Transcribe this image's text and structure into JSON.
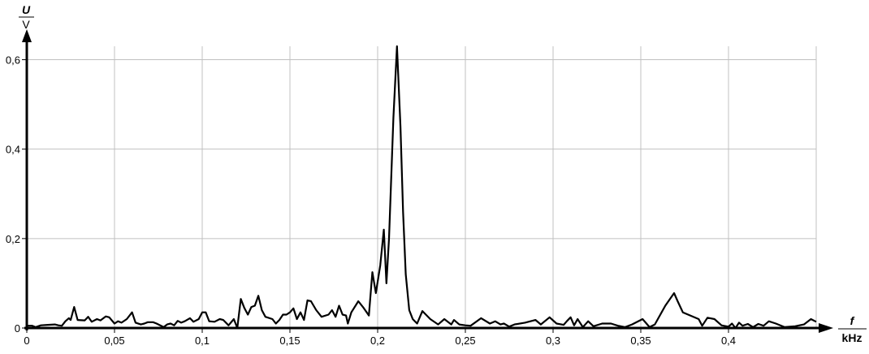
{
  "chart_data": {
    "type": "line",
    "xlabel": {
      "symbol": "f",
      "unit": "kHz"
    },
    "ylabel": {
      "symbol": "U",
      "unit": "V"
    },
    "xlim": [
      0,
      0.45
    ],
    "ylim": [
      0,
      0.63
    ],
    "grid": true,
    "x_ticks": [
      0,
      0.05,
      0.1,
      0.15,
      0.2,
      0.25,
      0.3,
      0.35,
      0.4
    ],
    "x_tick_labels": [
      "0",
      "0,05",
      "0,1",
      "0,15",
      "0,2",
      "0,25",
      "0,3",
      "0,35",
      "0,4"
    ],
    "y_ticks": [
      0,
      0.2,
      0.4,
      0.6
    ],
    "y_tick_labels": [
      "0",
      "0,2",
      "0,4",
      "0,6"
    ],
    "line_color": "#000000",
    "grid_color": "#c0c0c0",
    "series": [
      {
        "x": [
          0,
          0.003,
          0.005,
          0.008,
          0.012,
          0.016,
          0.018,
          0.02,
          0.022,
          0.024,
          0.025,
          0.027,
          0.029,
          0.033,
          0.035,
          0.037,
          0.04,
          0.042,
          0.045,
          0.047,
          0.05,
          0.052,
          0.054,
          0.057,
          0.06,
          0.062,
          0.065,
          0.067,
          0.069,
          0.072,
          0.074,
          0.078,
          0.08,
          0.082,
          0.084,
          0.086,
          0.088,
          0.09,
          0.093,
          0.095,
          0.098,
          0.1,
          0.102,
          0.104,
          0.107,
          0.11,
          0.112,
          0.115,
          0.118,
          0.12,
          0.122,
          0.124,
          0.126,
          0.128,
          0.13,
          0.132,
          0.134,
          0.136,
          0.14,
          0.142,
          0.144,
          0.146,
          0.148,
          0.15,
          0.152,
          0.154,
          0.156,
          0.158,
          0.16,
          0.162,
          0.165,
          0.168,
          0.172,
          0.174,
          0.176,
          0.178,
          0.18,
          0.182,
          0.183,
          0.185,
          0.189,
          0.192,
          0.195,
          0.197,
          0.199,
          0.2015,
          0.2035,
          0.205,
          0.2065,
          0.209,
          0.211,
          0.213,
          0.2145,
          0.216,
          0.218,
          0.22,
          0.2225,
          0.2255,
          0.23,
          0.2345,
          0.238,
          0.242,
          0.2435,
          0.2465,
          0.25,
          0.253,
          0.259,
          0.264,
          0.267,
          0.27,
          0.272,
          0.275,
          0.278,
          0.284,
          0.29,
          0.293,
          0.298,
          0.302,
          0.306,
          0.308,
          0.31,
          0.312,
          0.314,
          0.317,
          0.32,
          0.323,
          0.328,
          0.333,
          0.337,
          0.341,
          0.345,
          0.351,
          0.355,
          0.358,
          0.364,
          0.369,
          0.371,
          0.374,
          0.377,
          0.383,
          0.385,
          0.388,
          0.392,
          0.396,
          0.4,
          0.402,
          0.404,
          0.406,
          0.408,
          0.411,
          0.414,
          0.417,
          0.42,
          0.423,
          0.427,
          0.432,
          0.438,
          0.443,
          0.447,
          0.45
        ],
        "y": [
          0.005,
          0.005,
          0.002,
          0.006,
          0.007,
          0.008,
          0.006,
          0.005,
          0.015,
          0.022,
          0.018,
          0.047,
          0.018,
          0.017,
          0.025,
          0.014,
          0.02,
          0.017,
          0.026,
          0.024,
          0.01,
          0.015,
          0.012,
          0.02,
          0.035,
          0.012,
          0.008,
          0.01,
          0.013,
          0.013,
          0.01,
          0.002,
          0.008,
          0.01,
          0.006,
          0.016,
          0.012,
          0.015,
          0.022,
          0.014,
          0.02,
          0.035,
          0.035,
          0.015,
          0.014,
          0.02,
          0.018,
          0.006,
          0.02,
          0.0,
          0.065,
          0.045,
          0.03,
          0.047,
          0.05,
          0.072,
          0.04,
          0.025,
          0.02,
          0.01,
          0.018,
          0.03,
          0.03,
          0.035,
          0.044,
          0.02,
          0.035,
          0.018,
          0.062,
          0.06,
          0.04,
          0.025,
          0.03,
          0.04,
          0.025,
          0.05,
          0.03,
          0.028,
          0.01,
          0.035,
          0.06,
          0.045,
          0.028,
          0.125,
          0.078,
          0.14,
          0.22,
          0.1,
          0.2,
          0.47,
          0.63,
          0.45,
          0.26,
          0.12,
          0.04,
          0.02,
          0.01,
          0.038,
          0.02,
          0.008,
          0.02,
          0.008,
          0.018,
          0.008,
          0.006,
          0.005,
          0.022,
          0.01,
          0.015,
          0.008,
          0.01,
          0.003,
          0.008,
          0.012,
          0.018,
          0.008,
          0.024,
          0.01,
          0.007,
          0.016,
          0.024,
          0.006,
          0.02,
          0.002,
          0.015,
          0.004,
          0.01,
          0.01,
          0.005,
          0.002,
          0.008,
          0.02,
          0.002,
          0.008,
          0.05,
          0.078,
          0.06,
          0.035,
          0.03,
          0.02,
          0.005,
          0.023,
          0.02,
          0.006,
          0.003,
          0.01,
          0.0,
          0.012,
          0.005,
          0.009,
          0.002,
          0.009,
          0.005,
          0.015,
          0.01,
          0.002,
          0.004,
          0.008,
          0.02,
          0.014
        ]
      }
    ]
  }
}
